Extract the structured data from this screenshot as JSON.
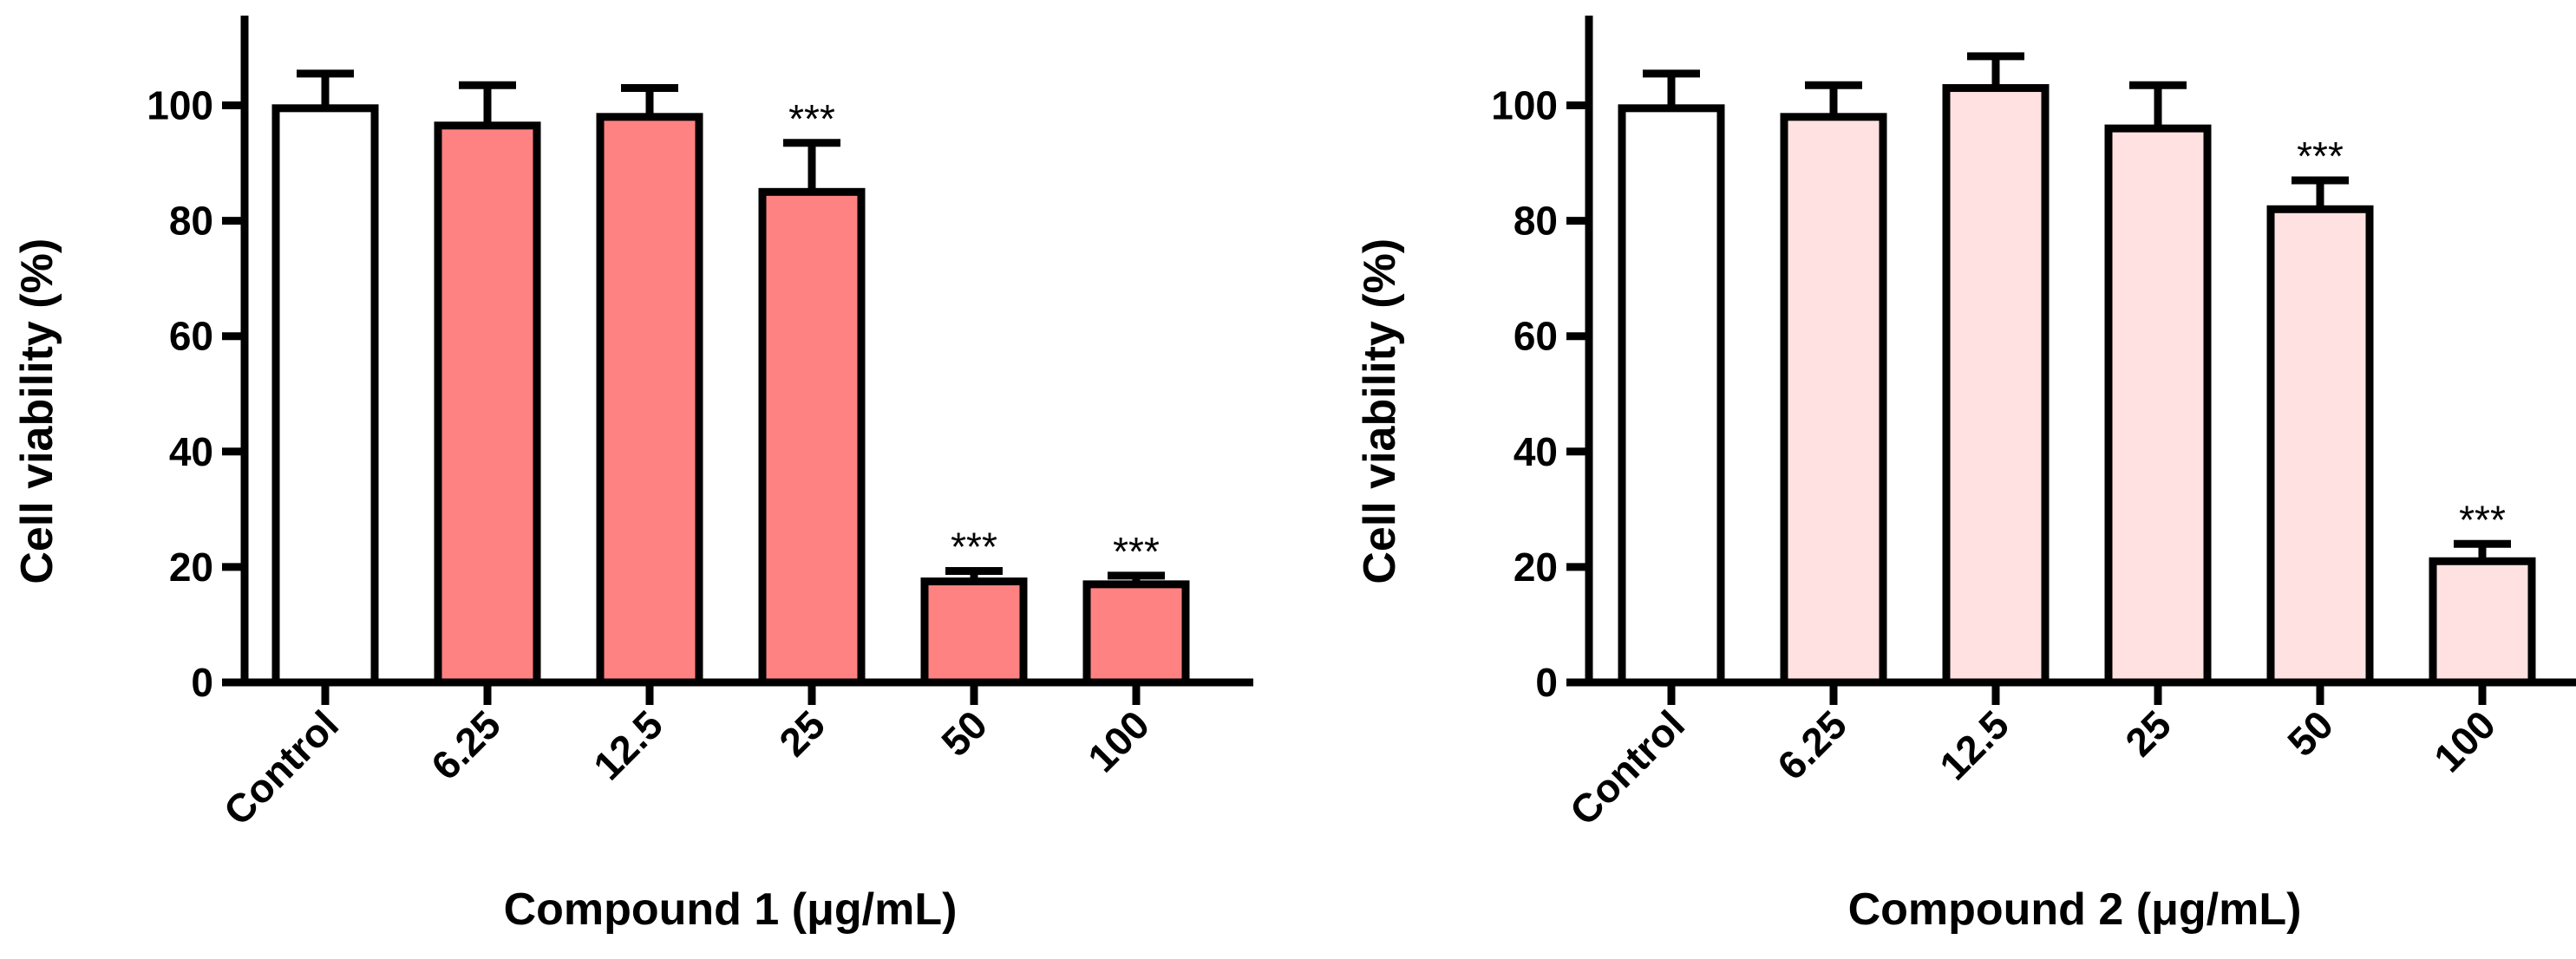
{
  "chart_data": [
    {
      "type": "bar",
      "title": "",
      "xlabel": "Compound 1 (μg/mL)",
      "ylabel": "Cell viability (%)",
      "ylim": [
        0,
        115
      ],
      "yticks": [
        0,
        20,
        40,
        60,
        80,
        100
      ],
      "grid": false,
      "categories": [
        "Control",
        "6.25",
        "12.5",
        "25",
        "50",
        "100"
      ],
      "series": [
        {
          "name": "Compound 1",
          "values": [
            99.5,
            96.5,
            98,
            85,
            17.5,
            17
          ],
          "errors": [
            6,
            7,
            5,
            8.5,
            1.8,
            1.5
          ],
          "colors": [
            "#ffffff",
            "#fe8282",
            "#fe8282",
            "#fe8282",
            "#fe8282",
            "#fe8282"
          ],
          "significance": [
            "",
            "",
            "",
            "***",
            "***",
            "***"
          ]
        }
      ]
    },
    {
      "type": "bar",
      "title": "",
      "xlabel": "Compound 2 (μg/mL)",
      "ylabel": "Cell viability (%)",
      "ylim": [
        0,
        115
      ],
      "yticks": [
        0,
        20,
        40,
        60,
        80,
        100
      ],
      "grid": false,
      "categories": [
        "Control",
        "6.25",
        "12.5",
        "25",
        "50",
        "100"
      ],
      "series": [
        {
          "name": "Compound 2",
          "values": [
            99.5,
            98,
            103,
            96,
            82,
            21
          ],
          "errors": [
            6,
            5.5,
            5.5,
            7.5,
            5,
            3
          ],
          "colors": [
            "#ffffff",
            "#ffe1e1",
            "#ffe1e1",
            "#ffe1e1",
            "#ffe1e1",
            "#ffe1e1"
          ],
          "significance": [
            "",
            "",
            "",
            "",
            "***",
            "***"
          ]
        }
      ]
    }
  ]
}
